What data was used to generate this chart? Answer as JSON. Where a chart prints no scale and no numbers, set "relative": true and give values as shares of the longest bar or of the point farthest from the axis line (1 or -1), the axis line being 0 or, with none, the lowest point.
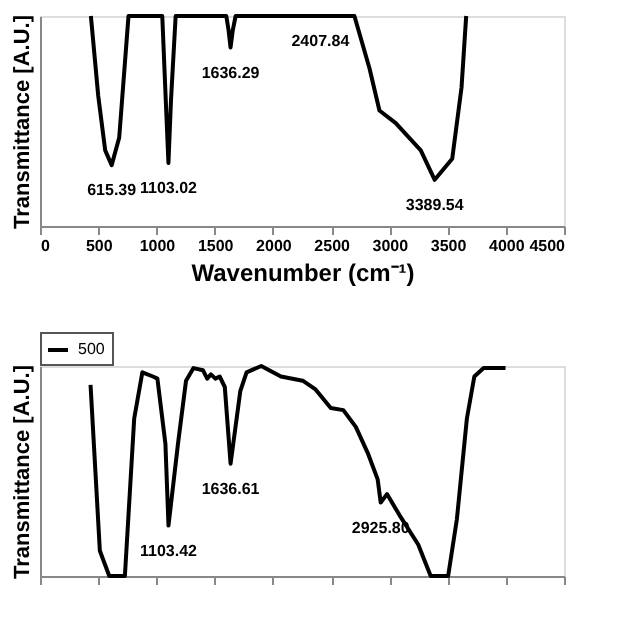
{
  "chart_data": [
    {
      "type": "line",
      "relative": true,
      "xlabel": "Wavenumber (cm⁻¹)",
      "ylabel": "Transmittance [A.U.]",
      "xlim": [
        0,
        4500
      ],
      "xticks": [
        0,
        500,
        1000,
        1500,
        2000,
        2500,
        3000,
        3500,
        4000,
        4500
      ],
      "grid": false,
      "legend": false,
      "line_style": "solid",
      "marker": "none",
      "series": [
        {
          "color": "#000000",
          "x": [
            437,
            500,
            560,
            615.39,
            680,
            760,
            1050,
            1080,
            1103.02,
            1125,
            1165,
            1600,
            1620,
            1636.29,
            1655,
            1680,
            2700,
            2830,
            2915,
            3055,
            3270,
            3389.54,
            3540,
            3620,
            3660
          ],
          "values": [
            1,
            0.62,
            0.36,
            0.29,
            0.42,
            1,
            1,
            0.6,
            0.3,
            0.6,
            1,
            1,
            0.93,
            0.85,
            0.93,
            1,
            1,
            0.75,
            0.55,
            0.49,
            0.36,
            0.22,
            0.32,
            0.66,
            1
          ]
        }
      ],
      "annotations": [
        {
          "text": "615.39",
          "x": 615.39,
          "y": 0.29
        },
        {
          "text": "1103.02",
          "x": 1103.02,
          "y": 0.3
        },
        {
          "text": "1636.29",
          "x": 1636.29,
          "y": 0.85
        },
        {
          "text": "2407.84",
          "x": 2407.84,
          "y": 1
        },
        {
          "text": "3389.54",
          "x": 3389.54,
          "y": 0.22
        }
      ]
    },
    {
      "type": "line",
      "relative": true,
      "ylabel": "Transmittance [A.U.]",
      "xlim": [
        0,
        4500
      ],
      "xticks": [
        0,
        500,
        1000,
        1500,
        2000,
        2500,
        3000,
        3500,
        4000,
        4500
      ],
      "tick_labels": false,
      "grid": false,
      "legend": "top left",
      "line_style": "solid",
      "marker": "none",
      "series": [
        {
          "name": "500",
          "color": "#000000",
          "x": [
            434,
            514,
            595,
            729,
            809,
            879,
            970,
            1008,
            1077,
            1103.42,
            1185,
            1254,
            1318,
            1399,
            1436,
            1468,
            1506,
            1543,
            1587,
            1636.61,
            1720,
            1774,
            1900,
            2069,
            2256,
            2363,
            2497,
            2605,
            2712,
            2819,
            2900,
            2925.8,
            2980,
            3087,
            3248,
            3355,
            3505,
            3580,
            3666,
            3730,
            3810,
            3998
          ],
          "values": [
            0.91,
            0.12,
            0,
            0,
            0.75,
            0.97,
            0.95,
            0.94,
            0.63,
            0.24,
            0.63,
            0.93,
            0.99,
            0.98,
            0.94,
            0.96,
            0.94,
            0.95,
            0.9,
            0.535,
            0.88,
            0.97,
            1,
            0.95,
            0.93,
            0.89,
            0.8,
            0.79,
            0.71,
            0.58,
            0.46,
            0.35,
            0.39,
            0.29,
            0.15,
            0,
            0,
            0.27,
            0.75,
            0.95,
            0.99,
            0.99
          ]
        }
      ],
      "annotations": [
        {
          "text": "1103.42",
          "x": 1103.42,
          "y": 0.24
        },
        {
          "text": "1636.61",
          "x": 1636.61,
          "y": 0.535
        },
        {
          "text": "2925.80",
          "x": 2925.8,
          "y": 0.35
        }
      ]
    }
  ]
}
